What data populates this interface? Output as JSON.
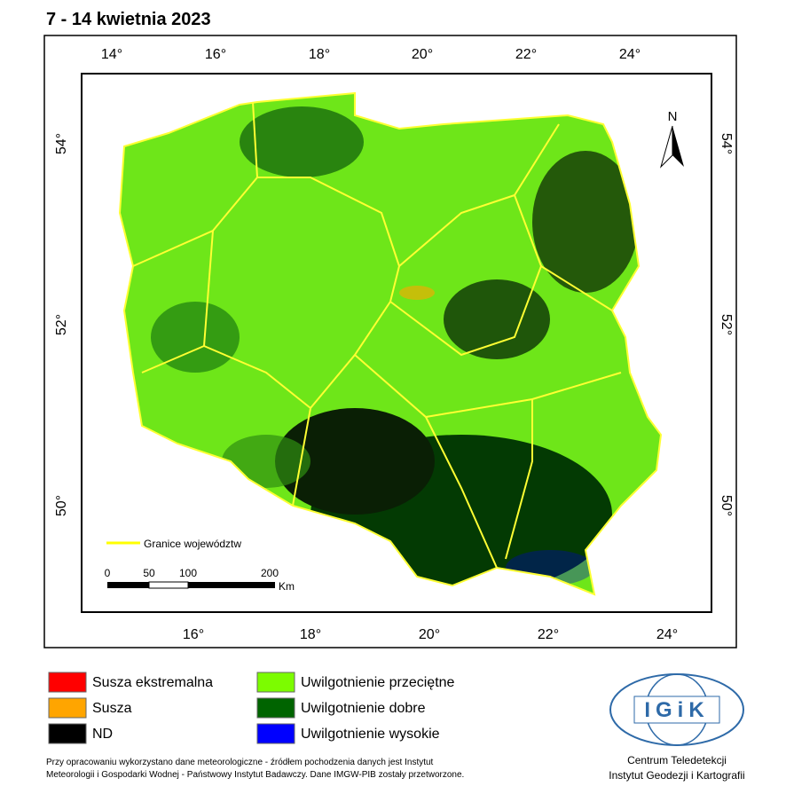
{
  "header": {
    "title": "7 - 14 kwietnia 2023"
  },
  "map": {
    "top_labels": [
      "14°",
      "16°",
      "18°",
      "20°",
      "22°",
      "24°"
    ],
    "bottom_labels": [
      "16°",
      "18°",
      "20°",
      "22°",
      "24°"
    ],
    "left_labels": [
      "54°",
      "52°",
      "50°"
    ],
    "right_labels": [
      "54°",
      "52°",
      "50°"
    ],
    "north": "N",
    "border_legend": "Granice województw",
    "scale_labels": [
      "0",
      "50",
      "100",
      "200"
    ],
    "scale_unit": "Km"
  },
  "legend": [
    {
      "label": "Susza ekstremalna",
      "color": "#ff0000"
    },
    {
      "label": "Susza",
      "color": "#ffa500"
    },
    {
      "label": "ND",
      "color": "#000000"
    },
    {
      "label": "Uwilgotnienie przeciętne",
      "color": "#7cfc00"
    },
    {
      "label": "Uwilgotnienie dobre",
      "color": "#006400"
    },
    {
      "label": "Uwilgotnienie wysokie",
      "color": "#0000ff"
    }
  ],
  "footnote": [
    "Przy opracowaniu wykorzystano dane meteorologiczne - źródłem pochodzenia danych jest Instytut",
    "Meteorologii i Gospodarki Wodnej - Państwowy Instytut Badawczy. Dane IMGW-PIB zostały przetworzone."
  ],
  "logo": {
    "text": "IGiK",
    "lines": [
      "Centrum Teledetekcji",
      "Instytut Geodezji i Kartografii"
    ]
  }
}
